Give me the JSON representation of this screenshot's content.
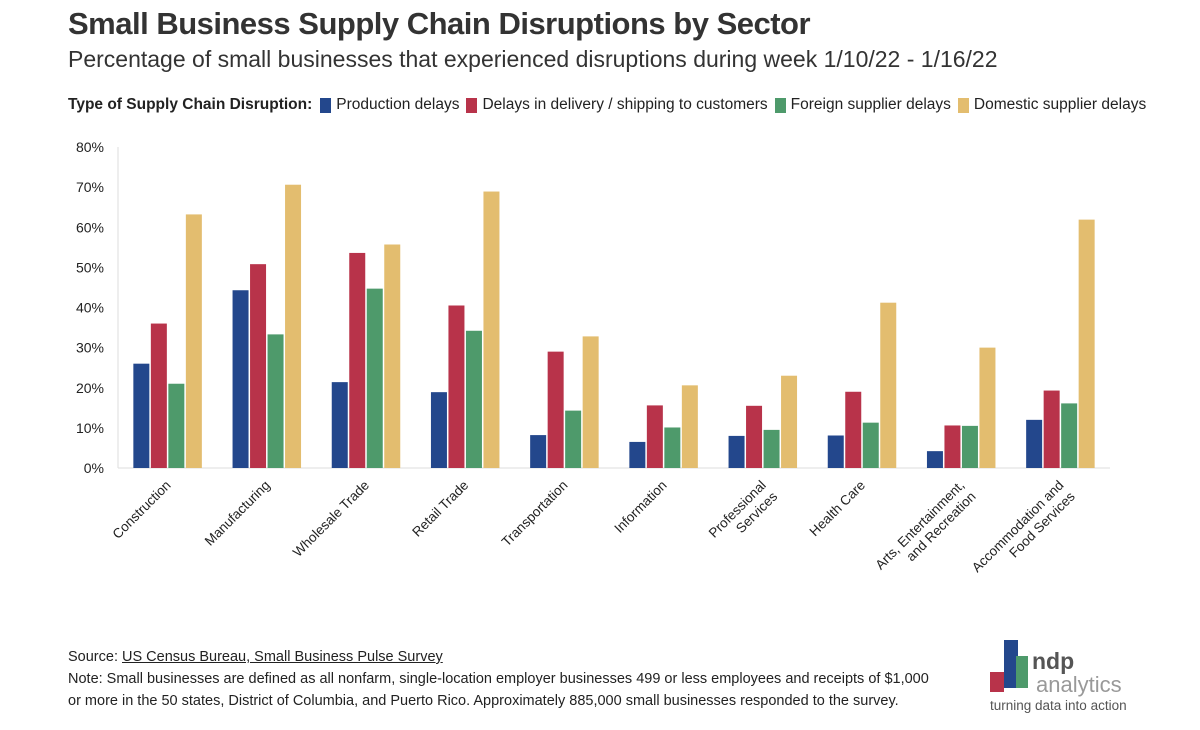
{
  "title": "Small Business Supply Chain Disruptions by Sector",
  "subtitle": "Percentage of small businesses that experienced disruptions during week 1/10/22 - 1/16/22",
  "legend_title": "Type of Supply Chain Disruption:",
  "colors": {
    "production": "#23478c",
    "delivery": "#b8334a",
    "foreign": "#4e9a6b",
    "domestic": "#e3bd6f",
    "axis": "#dddddd",
    "logo_gray": "#999999"
  },
  "chart_data": {
    "type": "bar",
    "title": "Small Business Supply Chain Disruptions by Sector",
    "xlabel": "",
    "ylabel": "",
    "ylim": [
      0,
      80
    ],
    "yticks": [
      "0%",
      "10%",
      "20%",
      "30%",
      "40%",
      "50%",
      "60%",
      "70%",
      "80%"
    ],
    "categories": [
      [
        "Construction"
      ],
      [
        "Manufacturing"
      ],
      [
        "Wholesale Trade"
      ],
      [
        "Retail Trade"
      ],
      [
        "Transportation"
      ],
      [
        "Information"
      ],
      [
        "Professional",
        "Services"
      ],
      [
        "Health Care"
      ],
      [
        "Arts, Entertainment,",
        "and Recreation"
      ],
      [
        "Accommodation and",
        "Food Services"
      ]
    ],
    "series": [
      {
        "name": "Production delays",
        "color": "#23478c",
        "values": [
          26,
          44.3,
          21.4,
          18.9,
          8.2,
          6.5,
          8,
          8.1,
          4.2,
          12
        ]
      },
      {
        "name": "Delays in delivery / shipping to customers",
        "color": "#b8334a",
        "values": [
          36,
          50.8,
          53.6,
          40.5,
          29,
          15.6,
          15.5,
          19,
          10.6,
          19.3
        ]
      },
      {
        "name": "Foreign supplier delays",
        "color": "#4e9a6b",
        "values": [
          21,
          33.3,
          44.7,
          34.2,
          14.3,
          10.1,
          9.5,
          11.3,
          10.5,
          16.1
        ]
      },
      {
        "name": "Domestic supplier delays",
        "color": "#e3bd6f",
        "values": [
          63.2,
          70.6,
          55.7,
          68.9,
          32.8,
          20.6,
          23,
          41.2,
          30,
          61.9
        ]
      }
    ],
    "grid": false,
    "legend_position": "top-left"
  },
  "footer": {
    "source_label": "Source: ",
    "source_link": "US Census Bureau, Small Business Pulse Survey",
    "note_line1": "Note: Small businesses are defined as all nonfarm, single-location employer businesses 499 or less employees and receipts of $1,000",
    "note_line2": "or more in the 50 states, District of Columbia, and Puerto Rico. Approximately 885,000 small businesses responded to the survey."
  },
  "logo": {
    "brand": "ndp",
    "brand2": "analytics",
    "tagline": "turning data into action"
  }
}
